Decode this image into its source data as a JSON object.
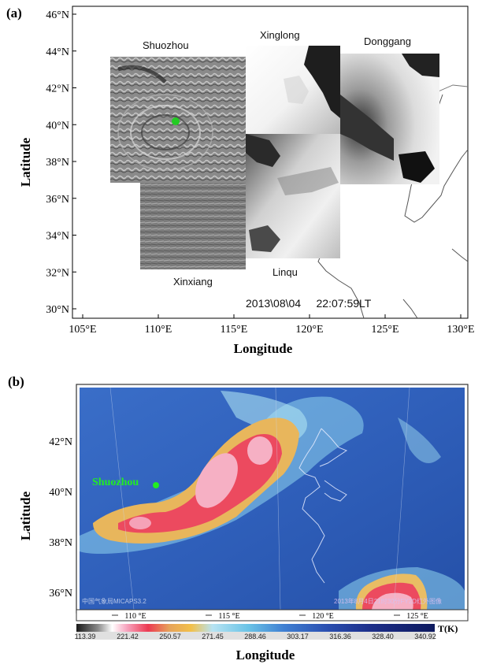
{
  "panel_a": {
    "label": "(a)",
    "y_axis_label": "Latitude",
    "x_axis_label": "Longitude",
    "lat_ticks": [
      "46°N",
      "44°N",
      "42°N",
      "40°N",
      "38°N",
      "36°N",
      "34°N",
      "32°N",
      "30°N"
    ],
    "lon_ticks": [
      "105°E",
      "110°E",
      "115°E",
      "120°E",
      "125°E",
      "130°E"
    ],
    "stations": {
      "shuozhou": "Shuozhou",
      "xinglong": "Xinglong",
      "donggang": "Donggang",
      "xinxiang": "Xinxiang",
      "linqu": "Linqu"
    },
    "timestamp": "2013\\08\\04     22:07:59LT",
    "marker_color": "#22cc22"
  },
  "panel_b": {
    "label": "(b)",
    "y_axis_label": "Latitude",
    "x_axis_label": "Longitude",
    "lat_ticks": [
      "42°N",
      "40°N",
      "38°N",
      "36°N"
    ],
    "lon_ticks": [
      "110 °E",
      "115 °E",
      "120 °E",
      "125 °E"
    ],
    "station_label": "Shuozhou",
    "watermark_left": "中国气象局MICAPS3.2",
    "watermark_right": "2013年8月4日21时30分FY2D红外图像",
    "colorbar_values": [
      "113.39",
      "221.42",
      "250.57",
      "271.45",
      "288.46",
      "303.17",
      "316.36",
      "328.40",
      "340.92"
    ],
    "colorbar_unit": "T(K)",
    "marker_color": "#22ee22"
  }
}
